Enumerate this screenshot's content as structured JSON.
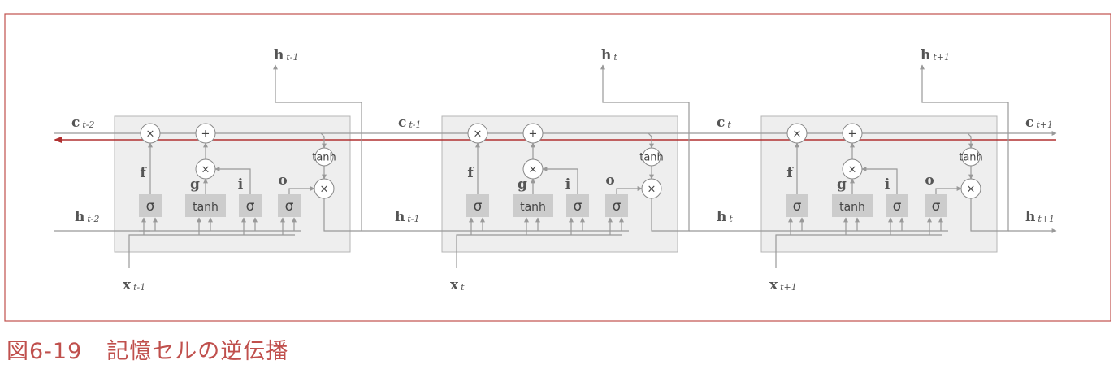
{
  "caption": {
    "number": "図6-19",
    "title": "記憶セルの逆伝播"
  },
  "cells": [
    {
      "h_out_main": "h",
      "h_out_sub": "t-1",
      "x_main": "x",
      "x_sub": "t-1"
    },
    {
      "h_out_main": "h",
      "h_out_sub": "t",
      "x_main": "x",
      "x_sub": "t"
    },
    {
      "h_out_main": "h",
      "h_out_sub": "t+1",
      "x_main": "x",
      "x_sub": "t+1"
    }
  ],
  "boundary_labels": [
    {
      "c_main": "c",
      "c_sub": "t-2",
      "h_main": "h",
      "h_sub": "t-2"
    },
    {
      "c_main": "c",
      "c_sub": "t-1",
      "h_main": "h",
      "h_sub": "t-1"
    },
    {
      "c_main": "c",
      "c_sub": "t",
      "h_main": "h",
      "h_sub": "t"
    },
    {
      "c_main": "c",
      "c_sub": "t+1",
      "h_main": "h",
      "h_sub": "t+1"
    }
  ],
  "gates": {
    "f_label": "f",
    "g_label": "g",
    "i_label": "i",
    "o_label": "o",
    "sigma": "σ",
    "tanh": "tanh",
    "mul": "×",
    "add": "+"
  },
  "colors": {
    "frame": "#c0504d",
    "backprop_arrow": "#b03030",
    "forward_line": "#999999",
    "cell_fill": "#eeeeee",
    "cell_stroke": "#b5b5b5",
    "gate_fill": "#cccccc",
    "node_stroke": "#888888",
    "caption": "#c0504d"
  }
}
